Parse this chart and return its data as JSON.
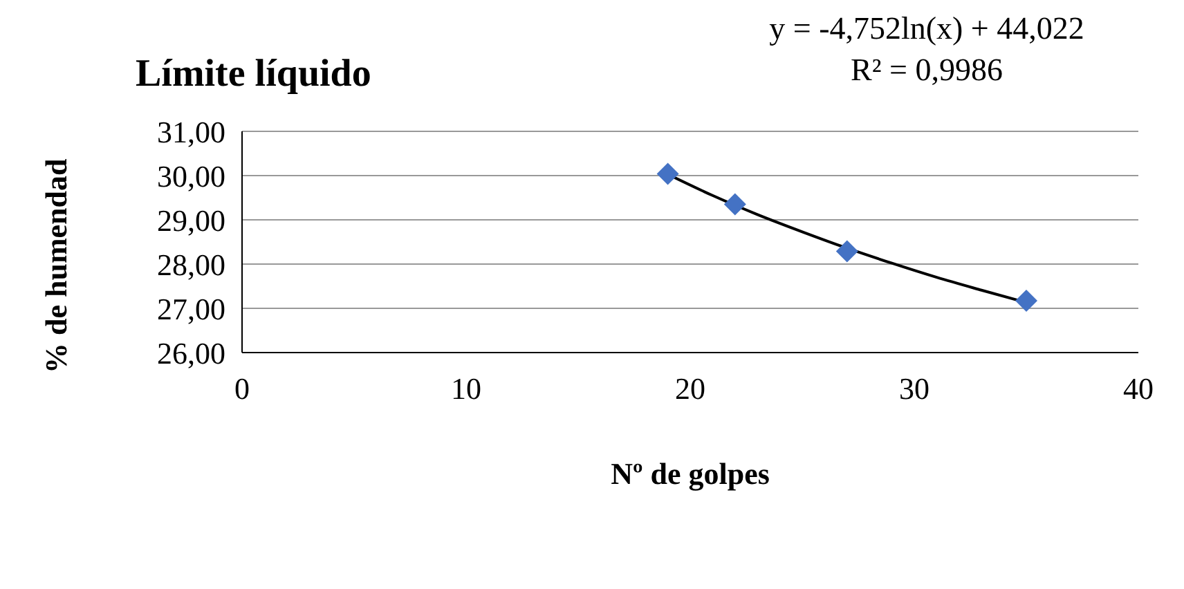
{
  "chart_data": {
    "type": "scatter",
    "title": "Límite líquido",
    "xlabel": "Nº de golpes",
    "ylabel": "% de humendad",
    "annotations": [
      "y = -4,752ln(x) + 44,022",
      "R² = 0,9986"
    ],
    "series": [
      {
        "color": "#4472c4",
        "marker": "diamond",
        "x": [
          19,
          22,
          27,
          35
        ],
        "values": [
          30.04,
          29.35,
          28.29,
          27.17
        ]
      },
      {
        "type": "line",
        "color": "#000000",
        "marker": "none",
        "line_style": "solid",
        "x": [
          19,
          21,
          23,
          25,
          27,
          29,
          31,
          33,
          35
        ],
        "values": [
          30.03,
          29.55,
          29.12,
          28.73,
          28.36,
          28.02,
          27.7,
          27.41,
          27.13
        ]
      }
    ],
    "xlim": [
      0,
      40
    ],
    "xticks": [
      0,
      10,
      20,
      30,
      40
    ],
    "ylim": [
      26,
      31
    ],
    "yticks": [
      {
        "value": 26,
        "label": "26,00"
      },
      {
        "value": 27,
        "label": "27,00"
      },
      {
        "value": 28,
        "label": "28,00"
      },
      {
        "value": 29,
        "label": "29,00"
      },
      {
        "value": 30,
        "label": "30,00"
      },
      {
        "value": 31,
        "label": "31,00"
      }
    ],
    "grid": "y"
  }
}
